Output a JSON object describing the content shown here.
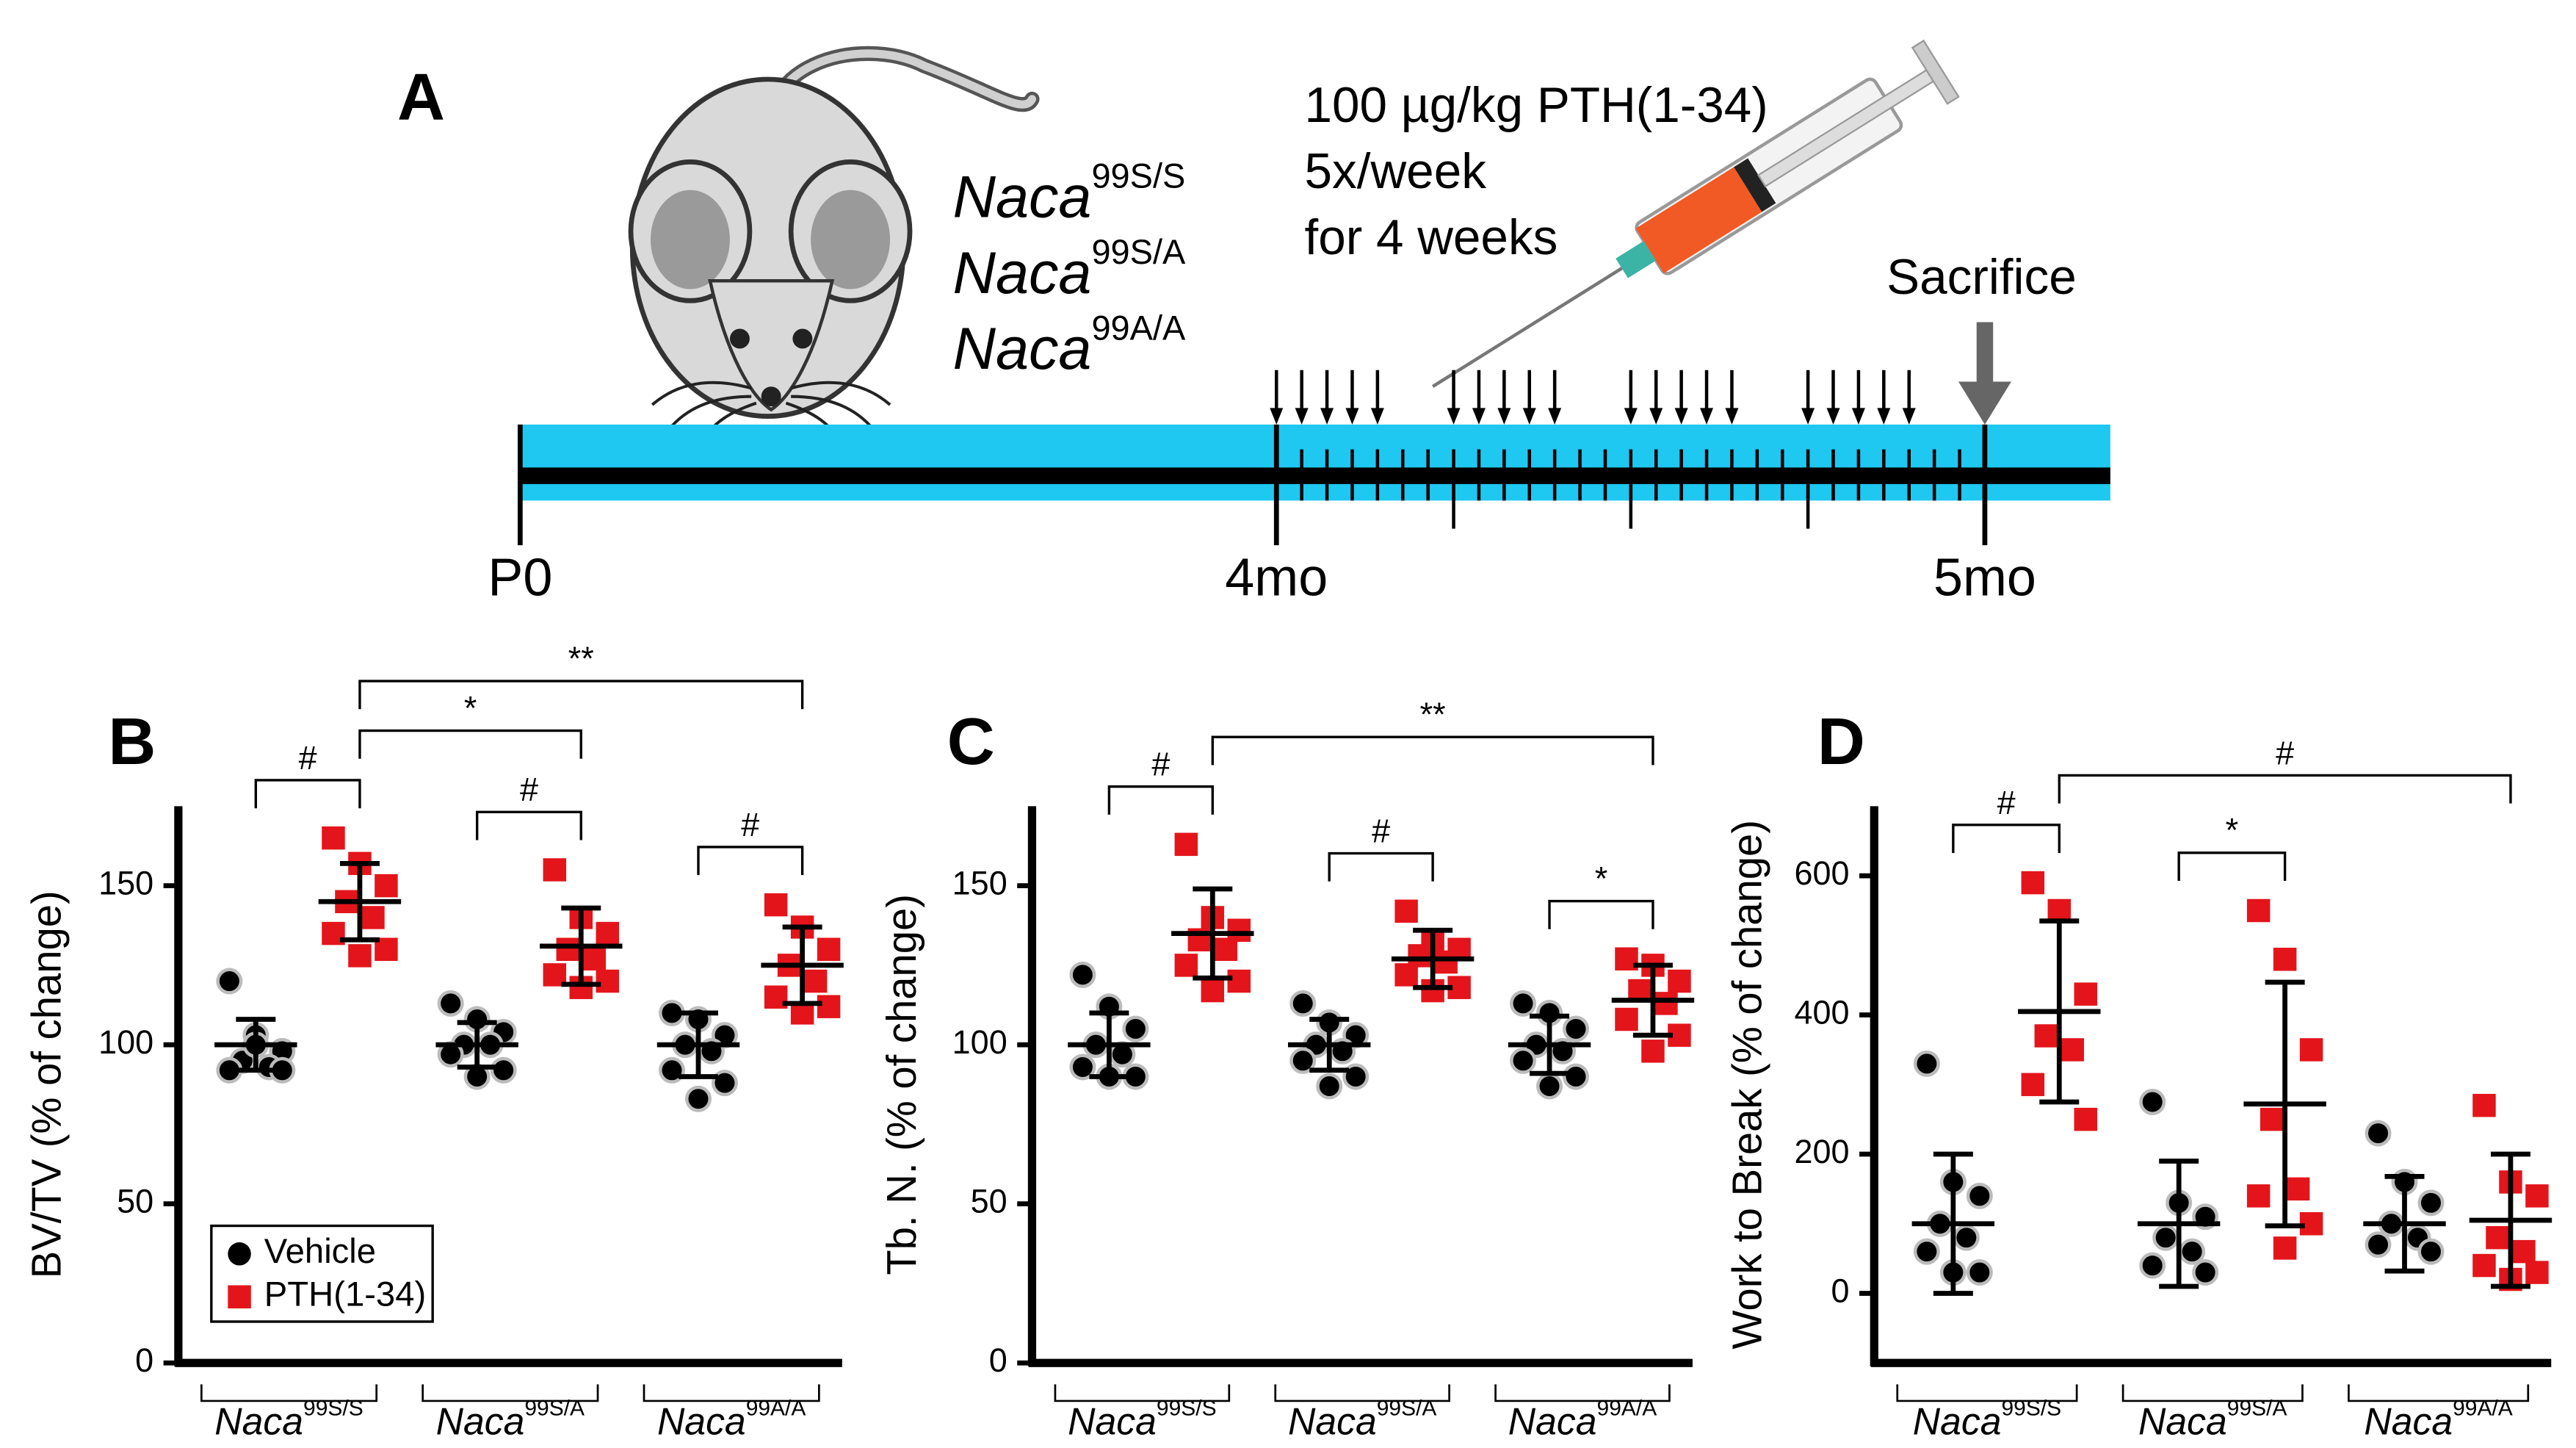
{
  "panel_a": {
    "label": "A",
    "genotypes": [
      {
        "name": "Naca",
        "sup": "99S/S"
      },
      {
        "name": "Naca",
        "sup": "99S/A"
      },
      {
        "name": "Naca",
        "sup": "99A/A"
      }
    ],
    "treatment": [
      "100 µg/kg PTH(1-34)",
      "5x/week",
      "for 4 weeks"
    ],
    "sacrifice": "Sacrifice",
    "timepoints": [
      "P0",
      "4mo",
      "5mo"
    ]
  },
  "chart_data": [
    {
      "type": "scatter",
      "panel": "B",
      "ylabel": "BV/TV (% of change)",
      "ylim": [
        0,
        175
      ],
      "yticks": [
        0,
        50,
        100,
        150
      ],
      "legend": true,
      "categories": [
        {
          "name": "Naca",
          "sup": "99S/S"
        },
        {
          "name": "Naca",
          "sup": "99S/A"
        },
        {
          "name": "Naca",
          "sup": "99A/A"
        }
      ],
      "series": [
        {
          "name": "Vehicle",
          "color": "#000000",
          "marker": "circle",
          "groups": [
            {
              "values": [
                120,
                103,
                98,
                95,
                93,
                92,
                92,
                100
              ],
              "mean": 100,
              "sd": 8
            },
            {
              "values": [
                113,
                108,
                104,
                100,
                100,
                97,
                92,
                90
              ],
              "mean": 100,
              "sd": 7
            },
            {
              "values": [
                110,
                108,
                103,
                100,
                98,
                92,
                88,
                83
              ],
              "mean": 100,
              "sd": 10
            }
          ]
        },
        {
          "name": "PTH(1-34)",
          "color": "#e3151b",
          "marker": "square",
          "groups": [
            {
              "values": [
                165,
                157,
                150,
                145,
                140,
                135,
                130,
                128
              ],
              "mean": 145,
              "sd": 12
            },
            {
              "values": [
                155,
                140,
                135,
                130,
                127,
                122,
                120,
                118
              ],
              "mean": 131,
              "sd": 12
            },
            {
              "values": [
                144,
                137,
                130,
                125,
                120,
                115,
                112,
                110
              ],
              "mean": 125,
              "sd": 12
            }
          ]
        }
      ],
      "brackets": [
        {
          "from": [
            0,
            0
          ],
          "to": [
            0,
            1
          ],
          "label": "#"
        },
        {
          "from": [
            1,
            0
          ],
          "to": [
            1,
            1
          ],
          "label": "#"
        },
        {
          "from": [
            2,
            0
          ],
          "to": [
            2,
            1
          ],
          "label": "#"
        },
        {
          "from": [
            0,
            1
          ],
          "to": [
            1,
            1
          ],
          "label": "*"
        },
        {
          "from": [
            0,
            1
          ],
          "to": [
            2,
            1
          ],
          "label": "**"
        }
      ]
    },
    {
      "type": "scatter",
      "panel": "C",
      "ylabel": "Tb. N. (% of change)",
      "ylim": [
        0,
        175
      ],
      "yticks": [
        0,
        50,
        100,
        150
      ],
      "categories": [
        {
          "name": "Naca",
          "sup": "99S/S"
        },
        {
          "name": "Naca",
          "sup": "99S/A"
        },
        {
          "name": "Naca",
          "sup": "99A/A"
        }
      ],
      "series": [
        {
          "color": "#000000",
          "marker": "circle",
          "groups": [
            {
              "values": [
                122,
                112,
                105,
                100,
                97,
                93,
                90,
                90
              ],
              "mean": 100,
              "sd": 10
            },
            {
              "values": [
                113,
                107,
                103,
                100,
                98,
                95,
                90,
                87
              ],
              "mean": 100,
              "sd": 8
            },
            {
              "values": [
                113,
                110,
                105,
                100,
                98,
                95,
                90,
                87
              ],
              "mean": 100,
              "sd": 9
            }
          ]
        },
        {
          "color": "#e3151b",
          "marker": "square",
          "groups": [
            {
              "values": [
                163,
                140,
                136,
                133,
                130,
                125,
                120,
                117
              ],
              "mean": 135,
              "sd": 14
            },
            {
              "values": [
                142,
                133,
                130,
                128,
                126,
                122,
                118,
                117
              ],
              "mean": 127,
              "sd": 9
            },
            {
              "values": [
                127,
                125,
                120,
                117,
                113,
                108,
                103,
                98
              ],
              "mean": 114,
              "sd": 11
            }
          ]
        }
      ],
      "brackets": [
        {
          "from": [
            0,
            0
          ],
          "to": [
            0,
            1
          ],
          "label": "#"
        },
        {
          "from": [
            1,
            0
          ],
          "to": [
            1,
            1
          ],
          "label": "#"
        },
        {
          "from": [
            2,
            0
          ],
          "to": [
            2,
            1
          ],
          "label": "*"
        },
        {
          "from": [
            0,
            1
          ],
          "to": [
            2,
            1
          ],
          "label": "**"
        }
      ]
    },
    {
      "type": "scatter",
      "panel": "D",
      "ylabel": "Work to Break (% of change)",
      "ylim": [
        -100,
        700
      ],
      "yticks": [
        0,
        200,
        400,
        600
      ],
      "categories": [
        {
          "name": "Naca",
          "sup": "99S/S"
        },
        {
          "name": "Naca",
          "sup": "99S/A"
        },
        {
          "name": "Naca",
          "sup": "99A/A"
        }
      ],
      "series": [
        {
          "color": "#000000",
          "marker": "circle",
          "groups": [
            {
              "values": [
                330,
                160,
                140,
                100,
                80,
                60,
                30,
                30
              ],
              "mean": 100,
              "sd": 100
            },
            {
              "values": [
                275,
                130,
                110,
                80,
                60,
                40,
                30
              ],
              "mean": 100,
              "sd": 90
            },
            {
              "values": [
                230,
                160,
                130,
                100,
                80,
                70,
                60
              ],
              "mean": 100,
              "sd": 68
            }
          ]
        },
        {
          "color": "#e3151b",
          "marker": "square",
          "groups": [
            {
              "values": [
                590,
                550,
                430,
                370,
                350,
                300,
                250
              ],
              "mean": 405,
              "sd": 130
            },
            {
              "values": [
                550,
                480,
                350,
                250,
                150,
                140,
                100,
                65
              ],
              "mean": 272,
              "sd": 175
            },
            {
              "values": [
                270,
                160,
                140,
                80,
                60,
                40,
                30,
                20
              ],
              "mean": 105,
              "sd": 95
            }
          ]
        }
      ],
      "brackets": [
        {
          "from": [
            0,
            0
          ],
          "to": [
            0,
            1
          ],
          "label": "#"
        },
        {
          "from": [
            1,
            0
          ],
          "to": [
            1,
            1
          ],
          "label": "*"
        },
        {
          "from": [
            0,
            1
          ],
          "to": [
            2,
            1
          ],
          "label": "#"
        }
      ]
    }
  ]
}
